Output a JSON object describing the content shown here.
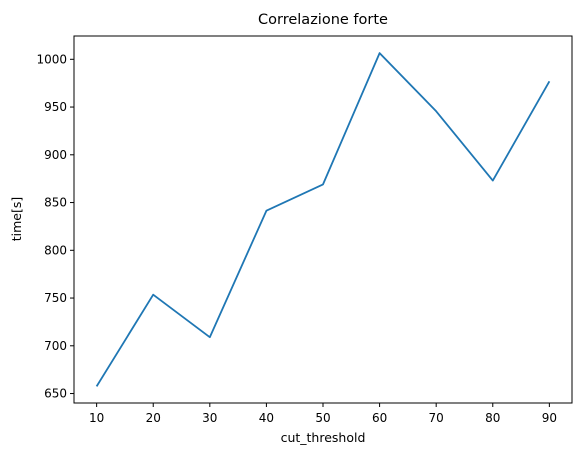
{
  "chart_data": {
    "type": "line",
    "title": "Correlazione forte",
    "xlabel": "cut_threshold",
    "ylabel": "time[s]",
    "x": [
      10,
      20,
      30,
      40,
      50,
      60,
      70,
      80,
      90
    ],
    "series": [
      {
        "values": [
          657.5,
          753.5,
          709,
          841.5,
          869,
          1006.5,
          945.5,
          873,
          977
        ],
        "color": "#1f77b4"
      }
    ],
    "xticks": [
      "10",
      "20",
      "30",
      "40",
      "50",
      "60",
      "70",
      "80",
      "90"
    ],
    "yticks": [
      "650",
      "700",
      "750",
      "800",
      "850",
      "900",
      "950",
      "1000"
    ],
    "xlim": [
      6,
      94
    ],
    "ylim": [
      640.1,
      1024.4
    ],
    "grid": false
  }
}
